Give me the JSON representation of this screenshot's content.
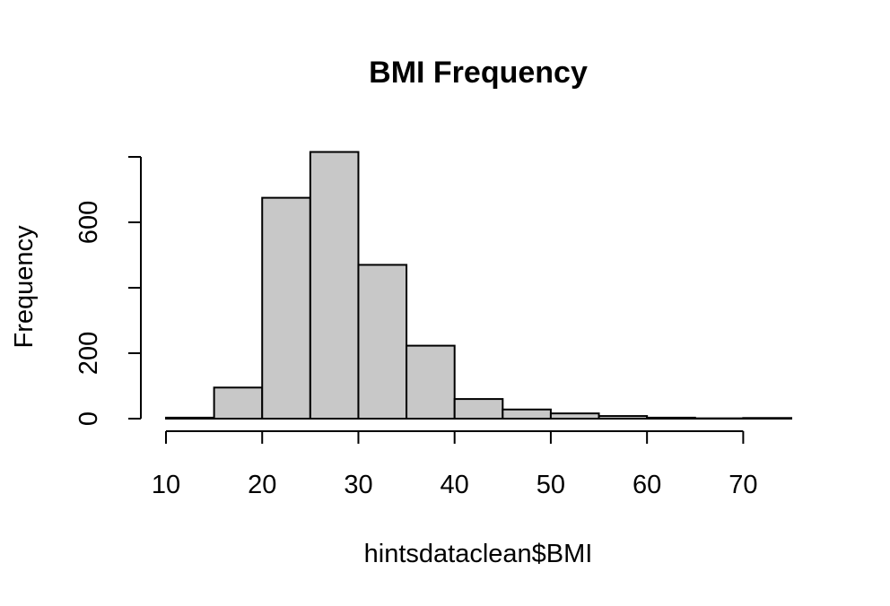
{
  "chart_data": {
    "type": "bar",
    "title": "BMI Frequency",
    "xlabel": "hintsdataclean$BMI",
    "ylabel": "Frequency",
    "xlim": [
      10,
      75
    ],
    "ylim": [
      0,
      800
    ],
    "x_ticks": [
      10,
      20,
      30,
      40,
      50,
      60,
      70
    ],
    "y_ticks": [
      0,
      200,
      400,
      600,
      800
    ],
    "y_tick_labels": [
      "0",
      "200",
      "",
      "600",
      ""
    ],
    "grid": false,
    "bins": [
      {
        "start": 10,
        "end": 15,
        "value": 3
      },
      {
        "start": 15,
        "end": 20,
        "value": 95
      },
      {
        "start": 20,
        "end": 25,
        "value": 675
      },
      {
        "start": 25,
        "end": 30,
        "value": 815
      },
      {
        "start": 30,
        "end": 35,
        "value": 470
      },
      {
        "start": 35,
        "end": 40,
        "value": 223
      },
      {
        "start": 40,
        "end": 45,
        "value": 60
      },
      {
        "start": 45,
        "end": 50,
        "value": 28
      },
      {
        "start": 50,
        "end": 55,
        "value": 16
      },
      {
        "start": 55,
        "end": 60,
        "value": 8
      },
      {
        "start": 60,
        "end": 65,
        "value": 3
      },
      {
        "start": 65,
        "end": 70,
        "value": 1
      },
      {
        "start": 70,
        "end": 75,
        "value": 2
      }
    ],
    "colors": {
      "bar_fill": "#c8c8c8",
      "bar_stroke": "#000000"
    }
  }
}
